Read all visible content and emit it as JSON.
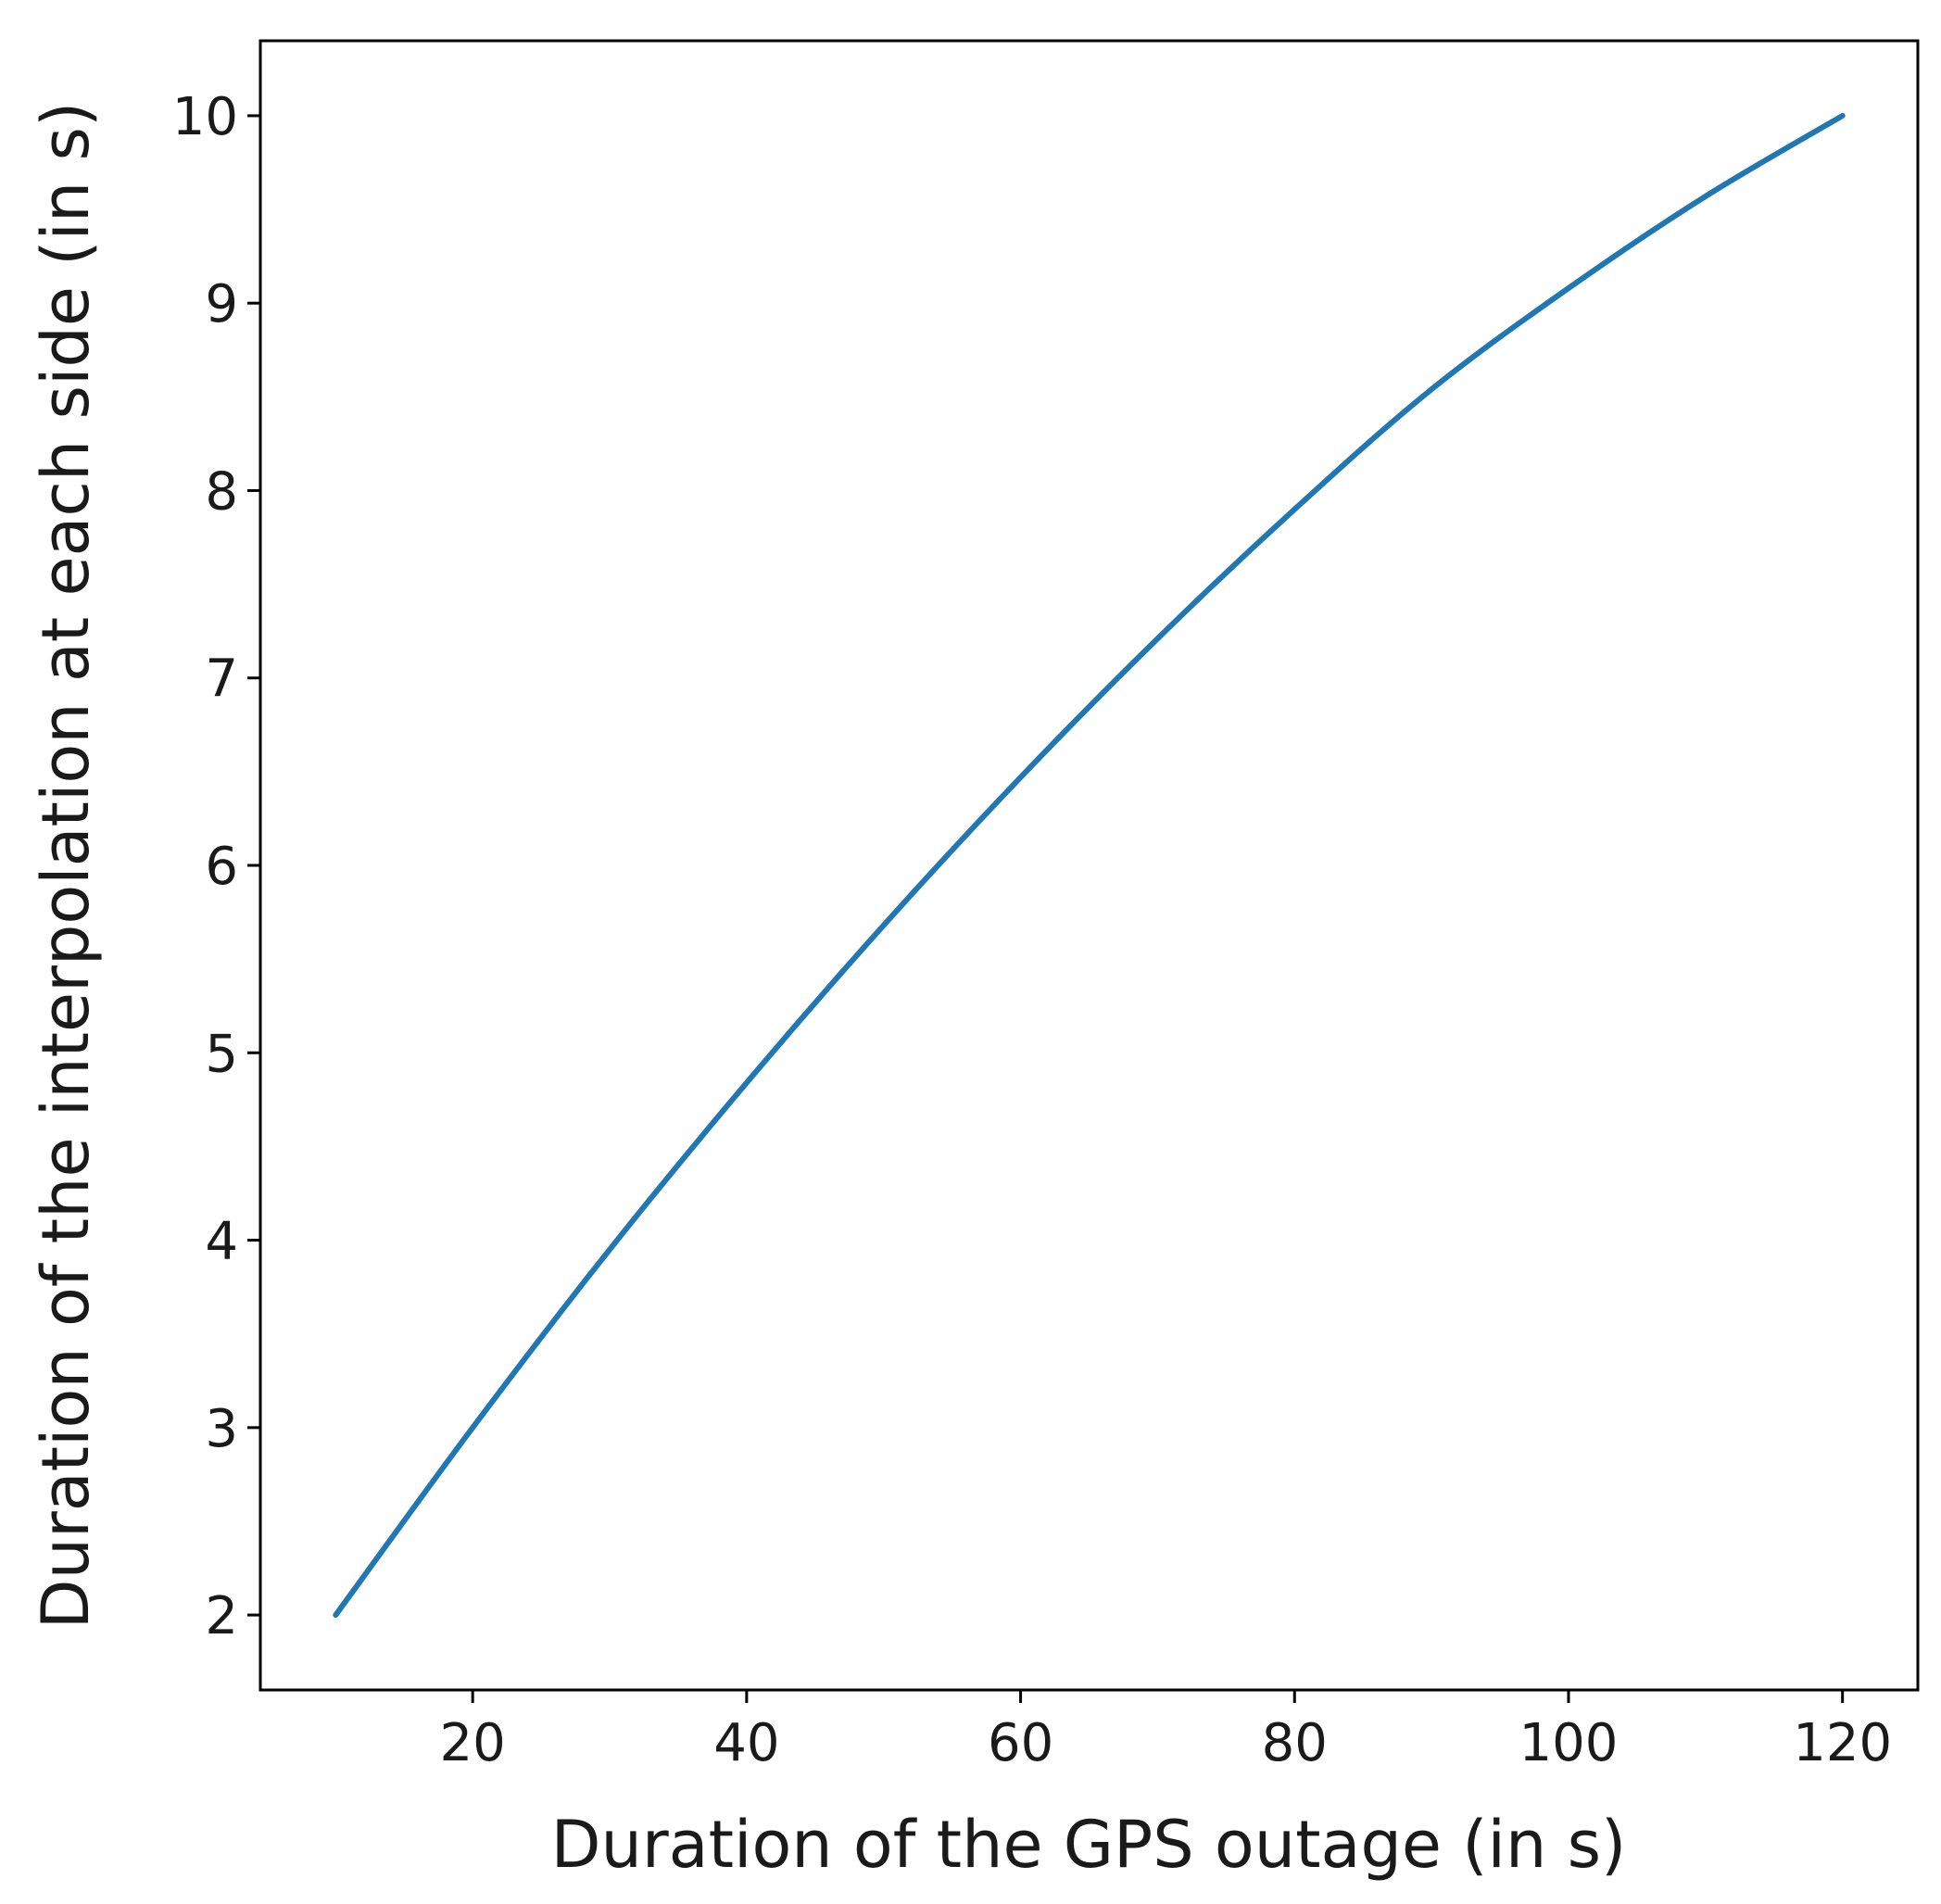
{
  "chart_data": {
    "type": "line",
    "title": "",
    "xlabel": "Duration of the GPS outage (in s)",
    "ylabel": "Duration of the interpolation at each side (in s)",
    "xlim": [
      4.5,
      125.5
    ],
    "ylim": [
      1.6,
      10.4
    ],
    "xticks": [
      20,
      40,
      60,
      80,
      100,
      120
    ],
    "yticks": [
      2,
      3,
      4,
      5,
      6,
      7,
      8,
      9,
      10
    ],
    "grid": false,
    "legend": "none",
    "series": [
      {
        "color": "#1f77b4",
        "x": [
          10,
          20,
          30,
          40,
          50,
          60,
          70,
          80,
          90,
          100,
          110,
          120
        ],
        "y": [
          2.0,
          3.0,
          3.95,
          4.84,
          5.68,
          6.47,
          7.21,
          7.9,
          8.54,
          9.08,
          9.57,
          10.0
        ]
      }
    ]
  }
}
